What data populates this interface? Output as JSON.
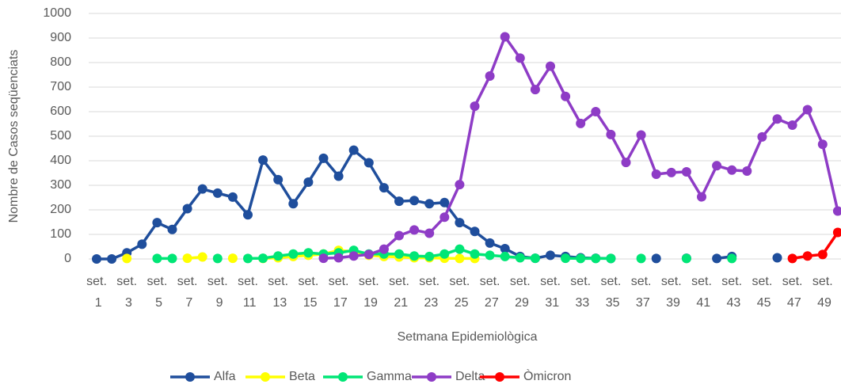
{
  "chart_data": {
    "type": "line",
    "y_label": "Nombre de Casos seqüenciats",
    "x_label": "Setmana Epidemiològica",
    "categories": [
      "set. 1",
      null,
      "set. 3",
      null,
      "set. 5",
      null,
      "set. 7",
      null,
      "set. 9",
      null,
      "set. 11",
      null,
      "set. 13",
      null,
      "set. 15",
      null,
      "set. 17",
      null,
      "set. 19",
      null,
      "set. 21",
      null,
      "set. 23",
      null,
      "set. 25",
      null,
      "set. 27",
      null,
      "set. 29",
      null,
      "set. 31",
      null,
      "set. 33",
      null,
      "set. 35",
      null,
      "set. 37",
      null,
      "set. 39",
      null,
      "set. 41",
      null,
      "set. 43",
      null,
      "set. 45",
      null,
      "set. 47",
      null,
      "set. 49",
      null
    ],
    "series": [
      {
        "name": "Alfa",
        "color": "#1f4e9c",
        "values": [
          0,
          0,
          25,
          60,
          148,
          120,
          205,
          285,
          268,
          252,
          180,
          403,
          323,
          225,
          313,
          410,
          337,
          443,
          392,
          290,
          235,
          238,
          225,
          230,
          148,
          112,
          65,
          42,
          10,
          3,
          15,
          10,
          5,
          3,
          2,
          null,
          null,
          2,
          null,
          3,
          null,
          2,
          10,
          null,
          null,
          5,
          null,
          null,
          null,
          null
        ]
      },
      {
        "name": "Beta",
        "color": "#ffff00",
        "values": [
          null,
          null,
          2,
          null,
          null,
          null,
          3,
          8,
          null,
          3,
          null,
          2,
          5,
          10,
          15,
          20,
          35,
          30,
          15,
          10,
          8,
          5,
          5,
          3,
          2,
          2,
          null,
          null,
          null,
          null,
          null,
          null,
          null,
          null,
          null,
          null,
          null,
          null,
          null,
          null,
          null,
          null,
          null,
          null,
          null,
          null,
          null,
          null,
          null,
          null
        ]
      },
      {
        "name": "Gamma",
        "color": "#00e676",
        "values": [
          null,
          null,
          null,
          null,
          2,
          2,
          null,
          null,
          2,
          null,
          2,
          3,
          12,
          20,
          25,
          20,
          25,
          35,
          20,
          20,
          20,
          12,
          10,
          20,
          40,
          20,
          15,
          10,
          5,
          3,
          null,
          3,
          2,
          2,
          2,
          null,
          2,
          null,
          null,
          2,
          null,
          null,
          2,
          null,
          null,
          null,
          null,
          null,
          null,
          null
        ]
      },
      {
        "name": "Delta",
        "color": "#8e3cc6",
        "values": [
          null,
          null,
          null,
          null,
          null,
          null,
          null,
          null,
          null,
          null,
          null,
          null,
          null,
          null,
          null,
          3,
          5,
          12,
          18,
          40,
          95,
          118,
          105,
          170,
          303,
          622,
          745,
          905,
          818,
          690,
          785,
          662,
          552,
          600,
          507,
          393,
          505,
          345,
          352,
          355,
          253,
          380,
          362,
          358,
          497,
          570,
          545,
          608,
          467,
          195
        ]
      },
      {
        "name": "Òmicron",
        "color": "#ff0000",
        "values": [
          null,
          null,
          null,
          null,
          null,
          null,
          null,
          null,
          null,
          null,
          null,
          null,
          null,
          null,
          null,
          null,
          null,
          null,
          null,
          null,
          null,
          null,
          null,
          null,
          null,
          null,
          null,
          null,
          null,
          null,
          null,
          null,
          null,
          null,
          null,
          null,
          null,
          null,
          null,
          null,
          null,
          null,
          null,
          null,
          null,
          null,
          2,
          12,
          18,
          108
        ]
      }
    ],
    "ylim": [
      0,
      1000
    ],
    "yticks": [
      0,
      100,
      200,
      300,
      400,
      500,
      600,
      700,
      800,
      900,
      1000
    ],
    "grid": true,
    "legend": "bottom"
  }
}
